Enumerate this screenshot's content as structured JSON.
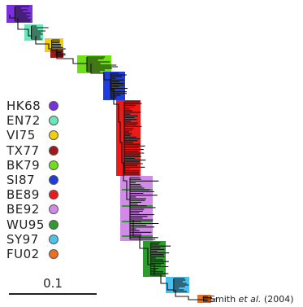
{
  "legend": {
    "items": [
      {
        "label": "HK68",
        "color": "#7b2fe0"
      },
      {
        "label": "EN72",
        "color": "#66e8b8"
      },
      {
        "label": "VI75",
        "color": "#f2cf0a"
      },
      {
        "label": "TX77",
        "color": "#a01818"
      },
      {
        "label": "BK79",
        "color": "#6fe016"
      },
      {
        "label": "SI87",
        "color": "#1f3ce0"
      },
      {
        "label": "BE89",
        "color": "#ee1a1a"
      },
      {
        "label": "BE92",
        "color": "#d28ae8"
      },
      {
        "label": "WU95",
        "color": "#2f9a2f"
      },
      {
        "label": "SY97",
        "color": "#4cc0ee"
      },
      {
        "label": "FU02",
        "color": "#ef6d1e"
      }
    ]
  },
  "scale_bar": {
    "label": "0.1"
  },
  "citation": {
    "author": "Smith",
    "etal": "et al.",
    "year": "(2004)"
  },
  "tree_colors": {
    "branch": "#111111",
    "stripe": "#2e9a2e"
  }
}
